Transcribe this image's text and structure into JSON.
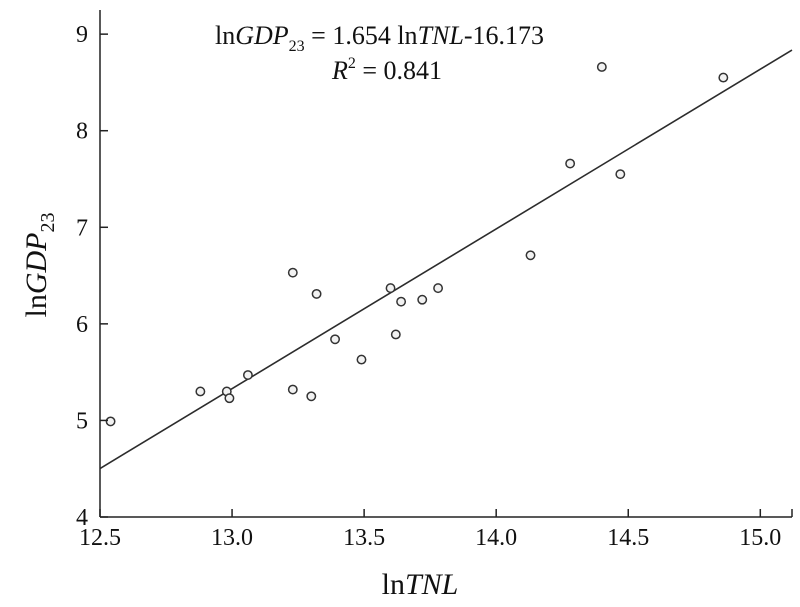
{
  "chart_data": {
    "type": "scatter",
    "title": "",
    "xlabel": {
      "prefix": "ln",
      "var": "TNL"
    },
    "ylabel": {
      "prefix": "ln",
      "var": "GDP",
      "sub": "23"
    },
    "xlim": [
      12.5,
      15.12
    ],
    "ylim": [
      4,
      9.25
    ],
    "xticks": [
      12.5,
      13.0,
      13.5,
      14.0,
      14.5,
      15.0
    ],
    "xtick_labels": [
      "12.5",
      "13.0",
      "13.5",
      "14.0",
      "14.5",
      "15.0"
    ],
    "yticks": [
      4,
      5,
      6,
      7,
      8,
      9
    ],
    "ytick_labels": [
      "4",
      "5",
      "6",
      "7",
      "8",
      "9"
    ],
    "grid": false,
    "points": [
      {
        "x": 12.54,
        "y": 4.99
      },
      {
        "x": 12.88,
        "y": 5.3
      },
      {
        "x": 12.98,
        "y": 5.3
      },
      {
        "x": 12.99,
        "y": 5.23
      },
      {
        "x": 13.06,
        "y": 5.47
      },
      {
        "x": 13.23,
        "y": 6.53
      },
      {
        "x": 13.23,
        "y": 5.32
      },
      {
        "x": 13.3,
        "y": 5.25
      },
      {
        "x": 13.32,
        "y": 6.31
      },
      {
        "x": 13.39,
        "y": 5.84
      },
      {
        "x": 13.49,
        "y": 5.63
      },
      {
        "x": 13.6,
        "y": 6.37
      },
      {
        "x": 13.62,
        "y": 5.89
      },
      {
        "x": 13.64,
        "y": 6.23
      },
      {
        "x": 13.72,
        "y": 6.25
      },
      {
        "x": 13.78,
        "y": 6.37
      },
      {
        "x": 14.13,
        "y": 6.71
      },
      {
        "x": 14.28,
        "y": 7.66
      },
      {
        "x": 14.4,
        "y": 8.66
      },
      {
        "x": 14.47,
        "y": 7.55
      },
      {
        "x": 14.86,
        "y": 8.55
      }
    ],
    "fit_line": {
      "slope": 1.654,
      "intercept": -16.173
    },
    "annotation": {
      "equation": {
        "lhs_prefix": "ln",
        "lhs_var": "GDP",
        "lhs_sub": "23",
        "eq_part": " = 1.654 ln",
        "rhs_var": "TNL",
        "rhs_const": "-16.173"
      },
      "r2": {
        "var": "R",
        "sup": "2",
        "value_text": " = 0.841"
      }
    }
  }
}
